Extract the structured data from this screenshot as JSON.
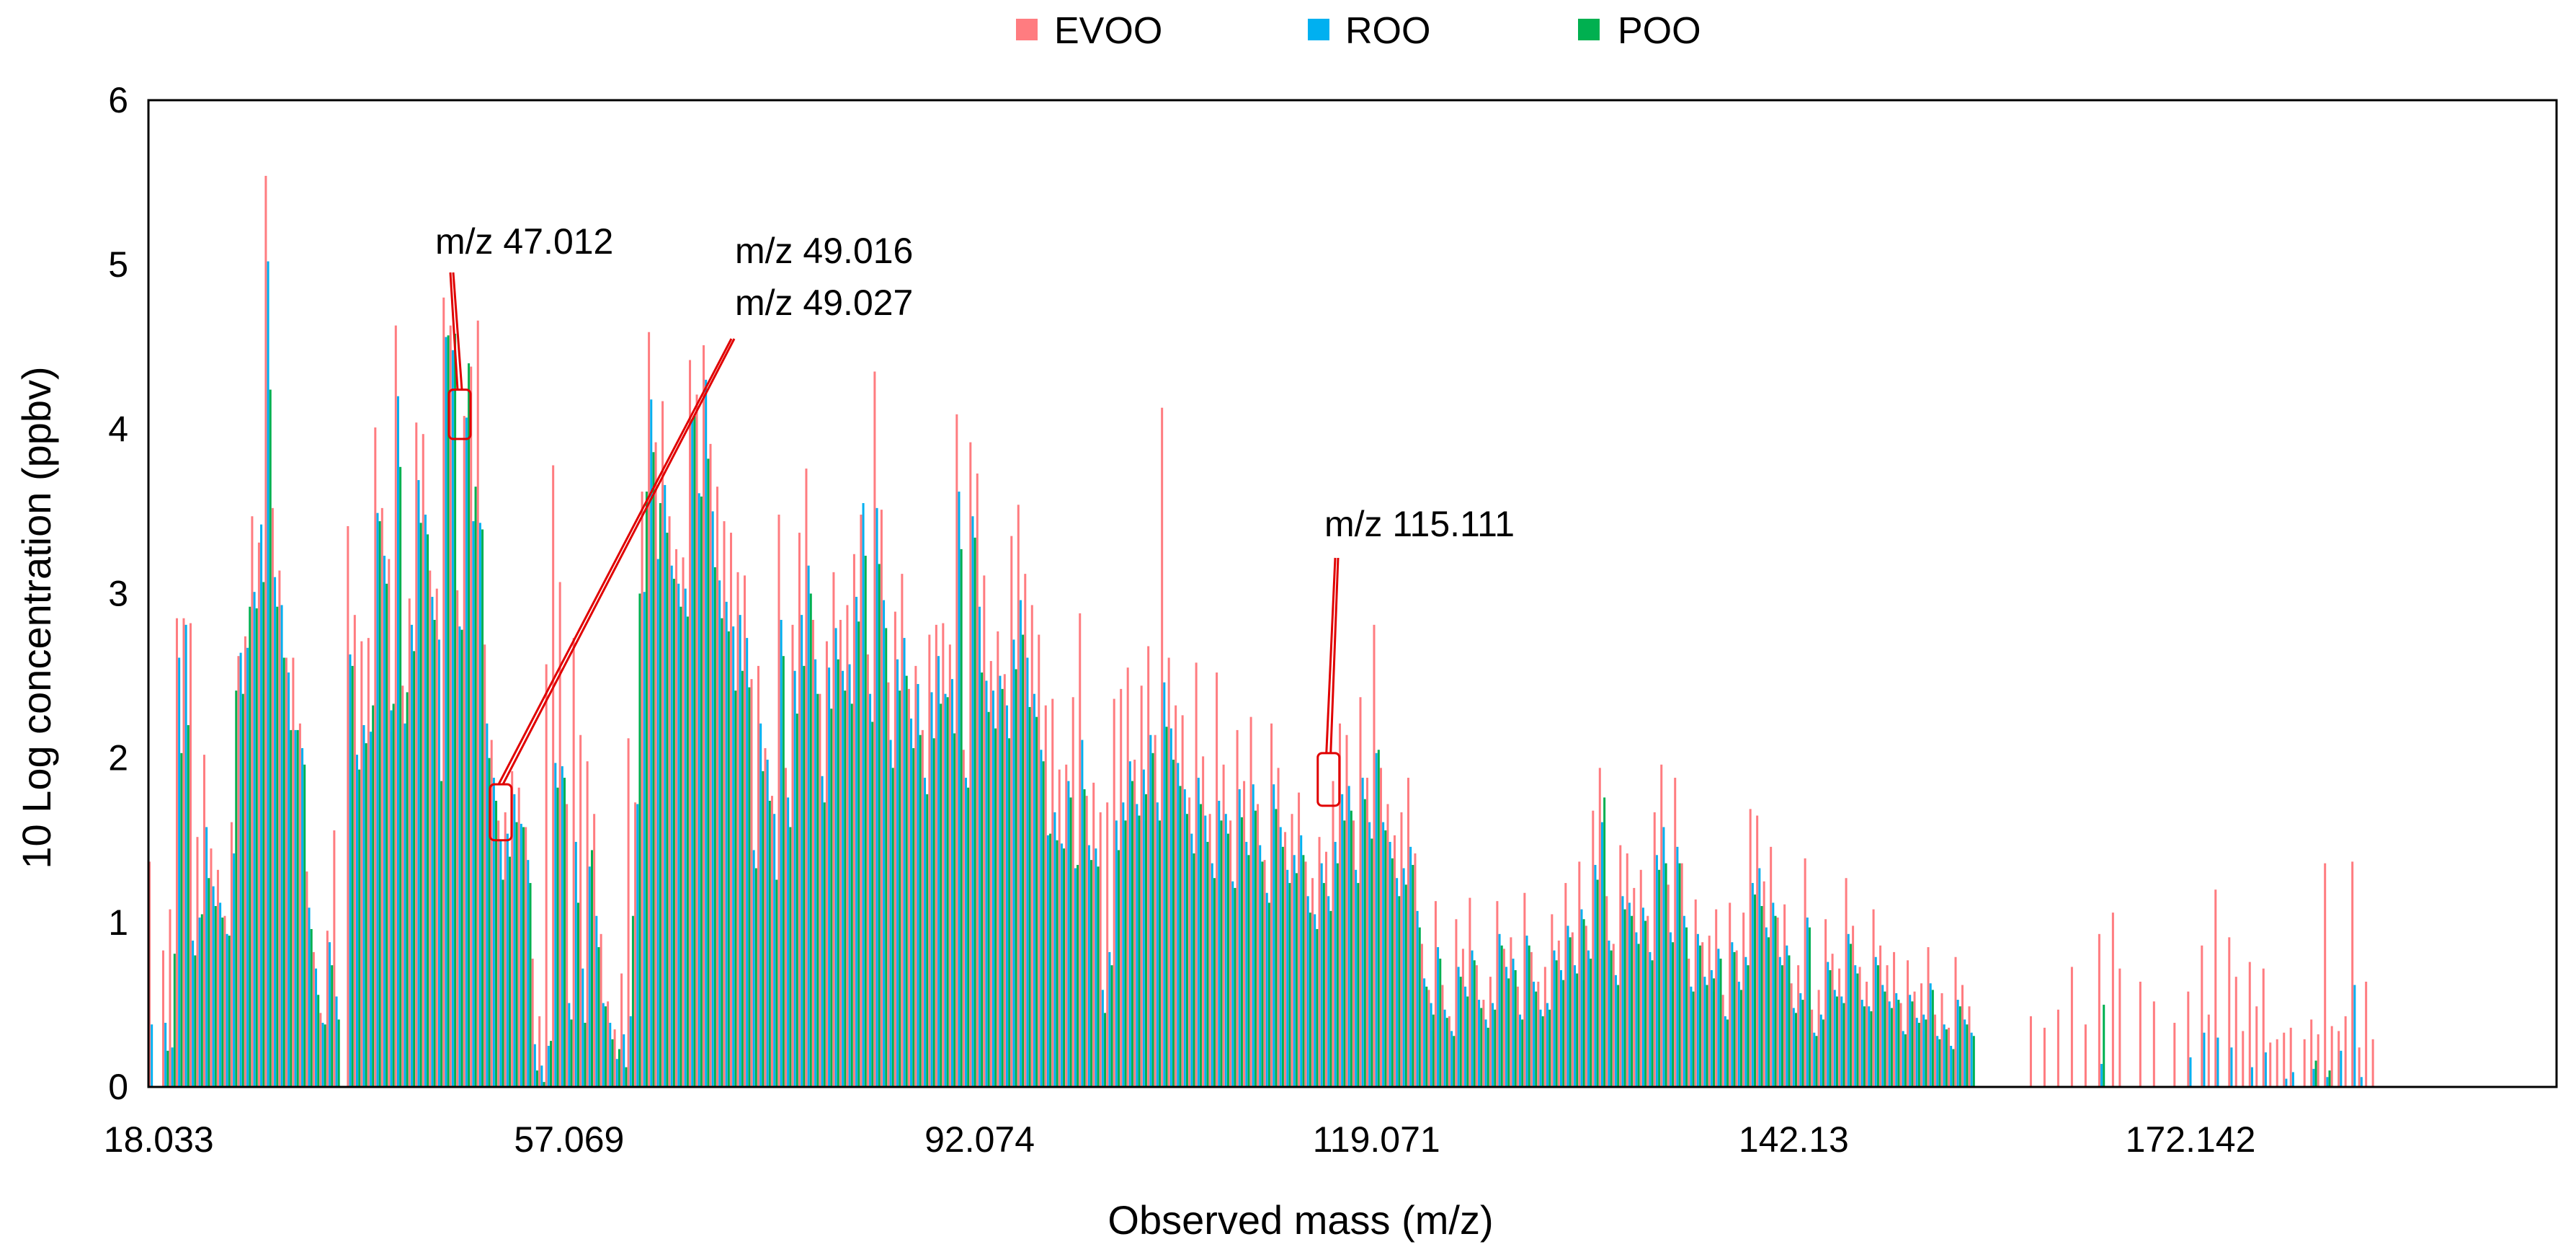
{
  "chart_data": {
    "type": "bar",
    "title": "",
    "xlabel": "Observed mass (m/z)",
    "ylabel": "10 Log  concentration (ppbv)",
    "ylim": [
      0,
      6
    ],
    "yticks": [
      "0",
      "1",
      "2",
      "3",
      "4",
      "5",
      "6"
    ],
    "xtick_labels": [
      "18.033",
      "57.069",
      "92.074",
      "119.071",
      "142.13",
      "172.142"
    ],
    "xtick_positions": [
      1,
      61,
      121,
      179,
      240,
      298
    ],
    "n_categories": 352,
    "legend_position": "top-center",
    "series": [
      {
        "name": "EVOO",
        "color": "#FF7C80",
        "values": [
          1.37,
          0,
          0.83,
          1.08,
          2.85,
          2.85,
          2.82,
          1.52,
          2.02,
          1.45,
          1.32,
          1.04,
          1.61,
          2.62,
          2.74,
          3.47,
          3.31,
          5.54,
          3.52,
          3.14,
          2.61,
          2.61,
          2.21,
          1.31,
          0.82,
          0.45,
          0.95,
          1.56,
          0,
          3.41,
          2.87,
          2.71,
          2.73,
          4.01,
          3.52,
          3.21,
          4.63,
          2.44,
          2.97,
          4.04,
          3.97,
          3.14,
          3.03,
          4.8,
          4.63,
          3.02,
          4.08,
          4.38,
          4.66,
          2.69,
          2.11,
          1.62,
          1.67,
          1.92,
          1.82,
          1.58,
          0.78,
          0.43,
          2.57,
          3.78,
          3.07,
          1.72,
          2.73,
          2.14,
          1.98,
          1.66,
          0.93,
          0.52,
          0.35,
          0.69,
          2.12,
          1.73,
          3.62,
          4.59,
          3.92,
          4.17,
          3.47,
          3.27,
          3.22,
          4.42,
          4.21,
          4.51,
          3.91,
          3.65,
          3.44,
          3.37,
          3.13,
          3.11,
          2.48,
          2.56,
          2.06,
          1.77,
          3.48,
          1.94,
          2.81,
          3.37,
          3.76,
          2.84,
          2.39,
          2.71,
          3.13,
          2.84,
          2.93,
          3.24,
          3.48,
          2.63,
          4.35,
          3.51,
          2.46,
          2.89,
          3.12,
          2.42,
          2.56,
          2.17,
          2.75,
          2.81,
          2.82,
          2.69,
          4.09,
          2.05,
          3.92,
          3.73,
          3.11,
          2.59,
          2.77,
          2.51,
          3.35,
          3.54,
          3.12,
          2.93,
          2.75,
          2.32,
          2.36,
          1.93,
          1.96,
          2.37,
          2.88,
          1.77,
          1.85,
          1.67,
          1.73,
          2.36,
          2.42,
          2.55,
          1.99,
          2.44,
          2.68,
          2.14,
          4.13,
          2.61,
          2.32,
          2.26,
          1.76,
          2.58,
          2.01,
          1.66,
          2.52,
          1.96,
          1.62,
          2.17,
          1.86,
          2.25,
          1.72,
          1.38,
          2.21,
          1.94,
          1.55,
          1.66,
          1.79,
          1.37,
          1.27,
          1.52,
          1.43,
          1.86,
          2.21,
          2.14,
          1.62,
          2.37,
          1.88,
          2.81,
          1.94,
          1.72,
          1.53,
          1.67,
          1.88,
          1.42,
          0.87,
          0.59,
          1.13,
          0.62,
          0.43,
          1.02,
          0.84,
          1.15,
          0.74,
          0.53,
          0.67,
          1.13,
          0.84,
          0.91,
          0.61,
          1.18,
          0.82,
          0.64,
          0.73,
          1.05,
          0.89,
          1.24,
          0.94,
          1.37,
          0.98,
          1.68,
          1.94,
          1.16,
          0.87,
          1.47,
          1.42,
          1.21,
          1.32,
          1.04,
          1.67,
          1.96,
          1.23,
          1.88,
          1.36,
          0.78,
          1.14,
          0.88,
          0.92,
          1.08,
          0.56,
          1.12,
          0.83,
          1.06,
          1.69,
          1.65,
          1.25,
          1.46,
          1.03,
          1.11,
          0.63,
          0.74,
          1.39,
          0.47,
          0.59,
          1.02,
          0.81,
          0.72,
          1.27,
          0.98,
          0.73,
          0.64,
          1.08,
          0.86,
          0.74,
          0.82,
          0.51,
          0.77,
          0.58,
          0.63,
          0.85,
          0.44,
          0.57,
          0.36,
          0.79,
          0.62,
          0.49,
          0,
          0,
          0,
          0,
          0,
          0,
          0,
          0,
          0.43,
          0,
          0.36,
          0,
          0.47,
          0,
          0.73,
          0,
          0.38,
          0,
          0.93,
          0,
          1.06,
          0.72,
          0,
          0,
          0.64,
          0,
          0.52,
          0,
          0,
          0.39,
          0,
          0.58,
          0,
          0.86,
          0.44,
          1.2,
          0,
          0.91,
          0.67,
          0.34,
          0.76,
          0.49,
          0.72,
          0.27,
          0.29,
          0.33,
          0.36,
          0,
          0.29,
          0.41,
          0.32,
          1.36,
          0.37,
          0.34,
          0.43,
          1.37,
          0.24,
          0.64,
          0.29
        ],
        "marks_in_plot": true
      },
      {
        "name": "ROO",
        "color": "#00B0F0",
        "values": [
          0.38,
          0,
          0.39,
          0.24,
          2.61,
          2.81,
          0.89,
          1.03,
          1.58,
          1.22,
          1.12,
          0.93,
          1.42,
          2.64,
          2.67,
          3.01,
          3.42,
          5.02,
          3.1,
          2.93,
          2.52,
          2.17,
          2.06,
          1.09,
          0.72,
          0.39,
          0.88,
          0.55,
          0,
          2.63,
          2.02,
          2.2,
          2.16,
          3.49,
          3.23,
          2.29,
          4.2,
          2.21,
          2.81,
          3.69,
          3.48,
          2.98,
          2.72,
          4.56,
          4.48,
          2.8,
          4.07,
          3.44,
          3.43,
          2.21,
          1.88,
          1.5,
          1.54,
          1.78,
          1.6,
          1.38,
          0.26,
          0.13,
          0.25,
          1.97,
          1.95,
          0.51,
          1.49,
          0.72,
          1.34,
          1.04,
          0.51,
          0.39,
          0.17,
          0.32,
          0.43,
          1.72,
          3.01,
          4.18,
          3.21,
          3.66,
          3.17,
          3.06,
          3.03,
          4.06,
          3.61,
          4.3,
          3.5,
          3.08,
          2.95,
          2.8,
          2.87,
          2.73,
          1.44,
          2.21,
          1.99,
          1.66,
          2.84,
          1.76,
          2.53,
          2.87,
          3.17,
          2.6,
          1.89,
          2.55,
          2.79,
          2.53,
          2.57,
          2.98,
          3.55,
          2.39,
          3.52,
          2.96,
          2.11,
          2.6,
          2.73,
          2.24,
          2.45,
          1.88,
          2.4,
          2.62,
          2.39,
          2.48,
          3.62,
          1.88,
          3.47,
          2.92,
          2.47,
          2.41,
          2.5,
          2.32,
          2.72,
          2.96,
          2.61,
          2.39,
          2.05,
          1.53,
          1.67,
          1.48,
          1.86,
          1.33,
          2.11,
          1.47,
          1.45,
          0.59,
          0.82,
          1.62,
          1.73,
          1.98,
          1.72,
          1.93,
          2.14,
          1.73,
          2.46,
          2.18,
          1.97,
          1.81,
          1.54,
          1.88,
          1.65,
          1.36,
          1.74,
          1.66,
          1.25,
          1.81,
          1.49,
          1.84,
          1.47,
          1.18,
          1.84,
          1.58,
          1.32,
          1.41,
          1.53,
          1.16,
          1.05,
          1.36,
          1.16,
          1.49,
          1.78,
          1.83,
          1.32,
          1.88,
          1.61,
          2.03,
          1.61,
          1.49,
          1.27,
          1.33,
          1.46,
          1.07,
          0.66,
          0.51,
          0.85,
          0.47,
          0.34,
          0.73,
          0.61,
          0.83,
          0.53,
          0.41,
          0.51,
          0.93,
          0.73,
          0.78,
          0.44,
          0.92,
          0.64,
          0.47,
          0.51,
          0.83,
          0.71,
          0.98,
          0.74,
          1.08,
          0.83,
          1.35,
          1.61,
          0.89,
          0.68,
          1.16,
          1.12,
          0.94,
          1.09,
          0.82,
          1.41,
          1.58,
          0.94,
          1.46,
          1.04,
          0.61,
          0.93,
          0.67,
          0.71,
          0.84,
          0.43,
          0.88,
          0.64,
          0.79,
          1.24,
          1.33,
          0.97,
          1.12,
          0.79,
          0.86,
          0.48,
          0.57,
          1.03,
          0.33,
          0.44,
          0.76,
          0.59,
          0.55,
          0.93,
          0.74,
          0.53,
          0.49,
          0.79,
          0.62,
          0.52,
          0.57,
          0.34,
          0.56,
          0.42,
          0.44,
          0.63,
          0.31,
          0.38,
          0.25,
          0.53,
          0.41,
          0.33,
          0,
          0,
          0,
          0,
          0,
          0,
          0,
          0,
          0,
          0,
          0,
          0,
          0,
          0,
          0,
          0,
          0,
          0,
          0.14,
          0,
          0,
          0,
          0,
          0,
          0,
          0,
          0,
          0,
          0,
          0,
          0,
          0.18,
          0,
          0.33,
          0,
          0.3,
          0,
          0.24,
          0,
          0,
          0.12,
          0,
          0.21,
          0,
          0,
          0.05,
          0.09,
          0,
          0,
          0.11,
          0,
          0.06,
          0,
          0.22,
          0,
          0.62,
          0.06
        ]
      },
      {
        "name": "POO",
        "color": "#00B050",
        "values": [
          0,
          0,
          0.22,
          0.81,
          2.03,
          2.2,
          0.8,
          1.05,
          1.27,
          1.1,
          1.03,
          0.92,
          2.41,
          2.39,
          2.92,
          2.91,
          3.07,
          4.24,
          2.92,
          2.61,
          2.17,
          2.17,
          1.96,
          0.96,
          0.56,
          0.38,
          0.74,
          0.41,
          0,
          2.56,
          1.93,
          2.09,
          2.32,
          3.44,
          3.06,
          2.33,
          3.77,
          2.4,
          2.65,
          3.43,
          3.36,
          2.84,
          1.86,
          4.57,
          4.58,
          2.78,
          4.4,
          3.65,
          3.39,
          2.0,
          1.74,
          1.26,
          1.4,
          1.61,
          1.58,
          1.24,
          0.1,
          0.03,
          0.28,
          1.82,
          1.88,
          0.41,
          1.12,
          0.39,
          1.44,
          0.85,
          0.49,
          0.29,
          0.23,
          0.12,
          1.04,
          3.0,
          3.62,
          3.86,
          3.55,
          3.37,
          3.09,
          2.92,
          2.86,
          4.08,
          3.59,
          3.82,
          3.16,
          2.85,
          2.77,
          2.41,
          2.53,
          2.43,
          1.33,
          1.92,
          1.74,
          1.26,
          2.62,
          1.58,
          2.27,
          2.56,
          3.0,
          2.39,
          1.73,
          2.3,
          2.6,
          2.41,
          2.33,
          2.83,
          3.23,
          2.22,
          3.18,
          2.79,
          1.94,
          2.41,
          2.5,
          2.06,
          2.14,
          1.78,
          2.12,
          2.33,
          2.37,
          2.15,
          3.27,
          1.82,
          3.34,
          2.52,
          2.28,
          2.18,
          2.42,
          2.12,
          2.54,
          2.75,
          2.31,
          2.25,
          1.98,
          1.54,
          1.5,
          1.45,
          1.76,
          1.35,
          1.81,
          1.38,
          1.34,
          0.45,
          0.74,
          1.44,
          1.62,
          1.86,
          1.65,
          1.78,
          2.03,
          1.62,
          2.19,
          1.99,
          1.83,
          1.66,
          1.42,
          1.72,
          1.49,
          1.27,
          1.62,
          1.54,
          1.21,
          1.64,
          1.41,
          1.68,
          1.37,
          1.12,
          1.69,
          1.46,
          1.24,
          1.3,
          1.41,
          1.06,
          0.96,
          1.24,
          1.07,
          1.36,
          1.62,
          1.68,
          1.24,
          1.75,
          1.51,
          2.05,
          1.56,
          1.39,
          1.16,
          1.23,
          1.35,
          0.97,
          0.61,
          0.44,
          0.78,
          0.42,
          0.31,
          0.67,
          0.55,
          0.77,
          0.48,
          0.36,
          0.47,
          0.86,
          0.66,
          0.71,
          0.41,
          0.86,
          0.58,
          0.43,
          0.47,
          0.77,
          0.65,
          0.91,
          0.69,
          1.02,
          0.78,
          1.26,
          1.76,
          0.83,
          0.62,
          1.08,
          1.04,
          0.87,
          1.01,
          0.77,
          1.32,
          1.36,
          0.88,
          1.36,
          0.97,
          0.58,
          0.86,
          0.62,
          0.66,
          0.78,
          0.41,
          0.82,
          0.59,
          0.74,
          1.17,
          1.1,
          0.91,
          1.04,
          0.74,
          0.8,
          0.45,
          0.53,
          0.97,
          0.31,
          0.41,
          0.71,
          0.55,
          0.51,
          0.87,
          0.69,
          0.49,
          0.46,
          0.74,
          0.58,
          0.48,
          0.53,
          0.32,
          0.52,
          0.39,
          0.41,
          0.59,
          0.29,
          0.35,
          0.23,
          0.49,
          0.38,
          0.31,
          0,
          0,
          0,
          0,
          0,
          0,
          0,
          0,
          0,
          0,
          0,
          0,
          0,
          0,
          0,
          0,
          0,
          0,
          0.5,
          0,
          0,
          0,
          0,
          0,
          0,
          0,
          0,
          0,
          0,
          0,
          0,
          0,
          0,
          0,
          0,
          0,
          0,
          0,
          0,
          0,
          0,
          0,
          0,
          0,
          0,
          0,
          0,
          0,
          0,
          0.16,
          0,
          0.1,
          0,
          0,
          0,
          0,
          0
        ]
      }
    ],
    "annotations": [
      {
        "lines": [
          "m/z 47.012"
        ],
        "category_index": 45,
        "box_y": [
          3.94,
          4.24
        ]
      },
      {
        "lines": [
          "m/z 49.016",
          "m/z 49.027"
        ],
        "category_index": 51,
        "box_y": [
          1.5,
          1.84
        ]
      },
      {
        "lines": [
          "m/z 115.111"
        ],
        "category_index": 172,
        "box_y": [
          1.71,
          2.03
        ]
      }
    ]
  }
}
